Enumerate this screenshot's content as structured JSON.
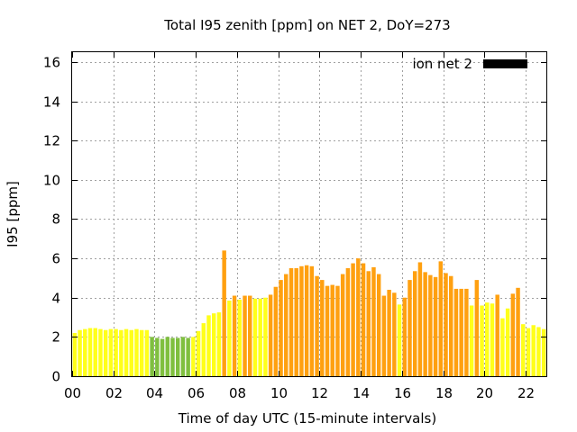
{
  "chart_data": {
    "type": "bar",
    "title": "Total I95 zenith [ppm] on NET 2, DoY=273",
    "xlabel": "Time of day UTC (15-minute intervals)",
    "ylabel": "I95 [ppm]",
    "xlim": [
      0,
      23
    ],
    "ylim": [
      0,
      16.5
    ],
    "xticks": [
      "00",
      "02",
      "04",
      "06",
      "08",
      "10",
      "12",
      "14",
      "16",
      "18",
      "20",
      "22"
    ],
    "yticks": [
      "0",
      "2",
      "4",
      "6",
      "8",
      "10",
      "12",
      "14",
      "16"
    ],
    "grid": true,
    "legend": {
      "label": "ion net 2",
      "color": "#000000",
      "placement": "top-right"
    },
    "interval_hours": 0.25,
    "colors": {
      "yellow": "#ffff1a",
      "green": "#7fbf3f",
      "orange": "#ffa010"
    },
    "values": [
      2.2,
      2.35,
      2.4,
      2.45,
      2.45,
      2.4,
      2.35,
      2.4,
      2.4,
      2.35,
      2.4,
      2.35,
      2.4,
      2.35,
      2.35,
      2.0,
      1.95,
      1.9,
      2.0,
      1.95,
      1.95,
      2.0,
      1.95,
      2.0,
      2.3,
      2.7,
      3.1,
      3.2,
      3.25,
      6.4,
      3.85,
      4.1,
      3.9,
      4.1,
      4.1,
      3.95,
      3.95,
      4.0,
      4.15,
      4.55,
      4.9,
      5.2,
      5.5,
      5.5,
      5.6,
      5.65,
      5.6,
      5.1,
      4.9,
      4.6,
      4.65,
      4.6,
      5.2,
      5.5,
      5.75,
      6.0,
      5.75,
      5.35,
      5.55,
      5.2,
      4.1,
      4.4,
      4.25,
      3.65,
      4.0,
      4.9,
      5.35,
      5.8,
      5.3,
      5.15,
      5.05,
      5.85,
      5.25,
      5.1,
      4.45,
      4.45,
      4.45,
      3.6,
      4.9,
      3.6,
      3.75,
      3.7,
      4.15,
      2.95,
      3.45,
      4.2,
      4.5,
      2.65,
      2.45,
      2.6,
      2.5,
      2.4
    ],
    "bar_colors": [
      "yellow",
      "yellow",
      "yellow",
      "yellow",
      "yellow",
      "yellow",
      "yellow",
      "yellow",
      "yellow",
      "yellow",
      "yellow",
      "yellow",
      "yellow",
      "yellow",
      "yellow",
      "green",
      "green",
      "green",
      "green",
      "green",
      "green",
      "green",
      "green",
      "yellow",
      "yellow",
      "yellow",
      "yellow",
      "yellow",
      "yellow",
      "orange",
      "yellow",
      "orange",
      "yellow",
      "orange",
      "orange",
      "yellow",
      "yellow",
      "yellow",
      "orange",
      "orange",
      "orange",
      "orange",
      "orange",
      "orange",
      "orange",
      "orange",
      "orange",
      "orange",
      "orange",
      "orange",
      "orange",
      "orange",
      "orange",
      "orange",
      "orange",
      "orange",
      "orange",
      "orange",
      "orange",
      "orange",
      "orange",
      "orange",
      "orange",
      "yellow",
      "orange",
      "orange",
      "orange",
      "orange",
      "orange",
      "orange",
      "orange",
      "orange",
      "orange",
      "orange",
      "orange",
      "orange",
      "orange",
      "yellow",
      "orange",
      "yellow",
      "yellow",
      "yellow",
      "orange",
      "yellow",
      "yellow",
      "orange",
      "orange",
      "yellow",
      "yellow",
      "yellow",
      "yellow",
      "yellow"
    ]
  }
}
